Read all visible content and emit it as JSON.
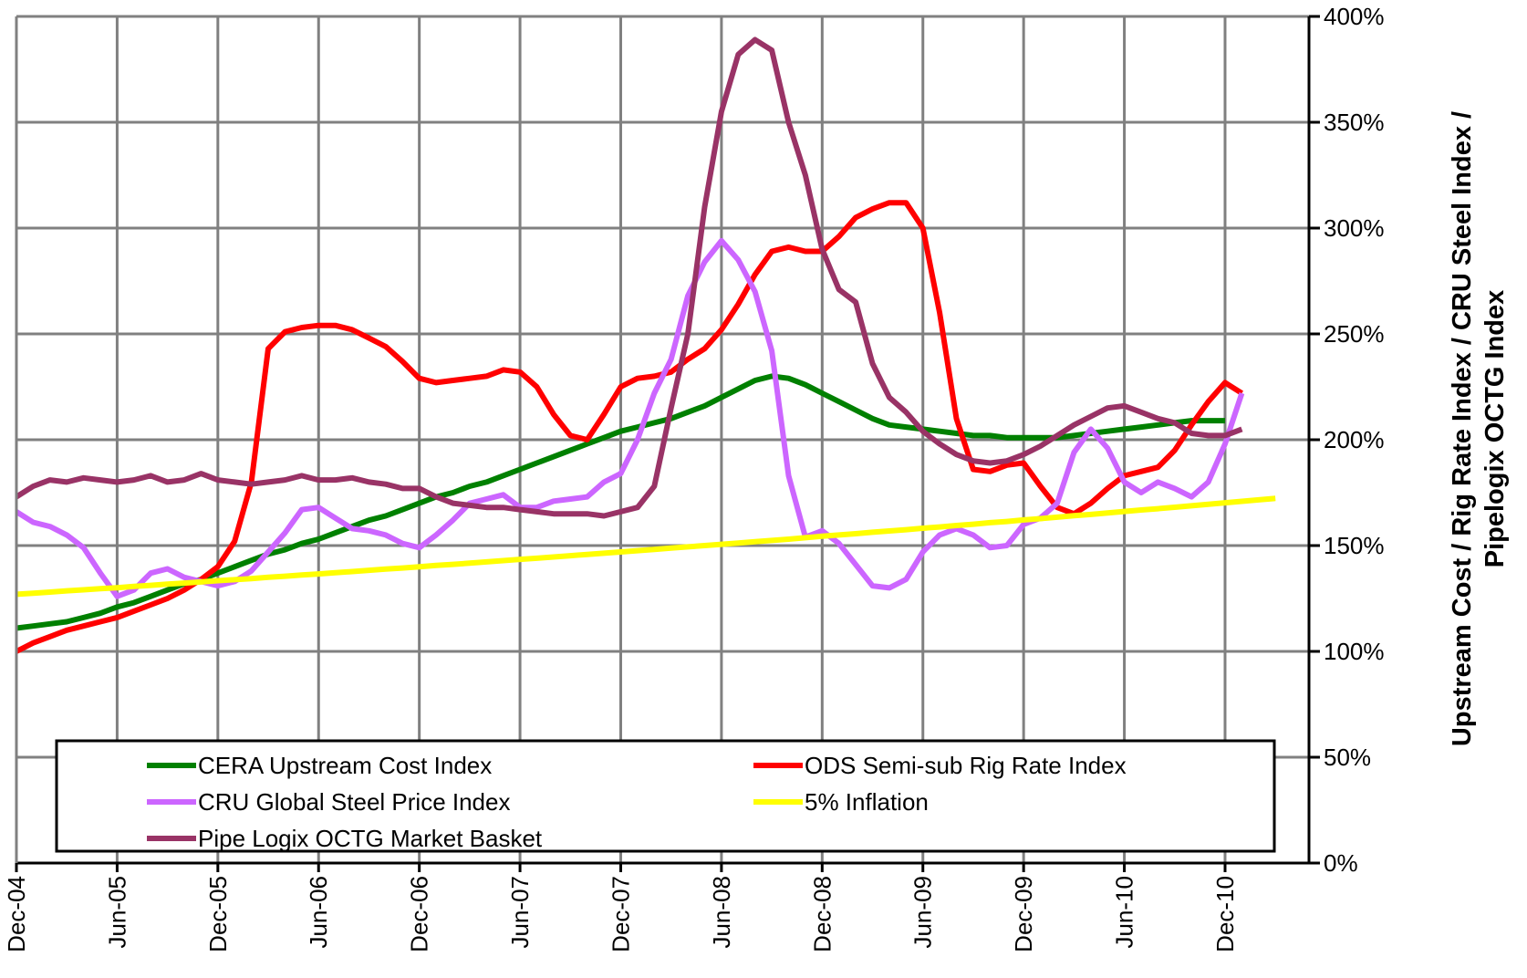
{
  "chart_data": {
    "type": "line",
    "y_label": [
      "Upstream Cost / Rig Rate Index / CRU Steel Index /",
      "Pipelogix OCTG Index"
    ],
    "categories": [
      "Dec-04",
      null,
      null,
      null,
      null,
      null,
      "Jun-05",
      null,
      null,
      null,
      null,
      null,
      "Dec-05",
      null,
      null,
      null,
      null,
      null,
      "Jun-06",
      null,
      null,
      null,
      null,
      null,
      "Dec-06",
      null,
      null,
      null,
      null,
      null,
      "Jun-07",
      null,
      null,
      null,
      null,
      null,
      "Dec-07",
      null,
      null,
      null,
      null,
      null,
      "Jun-08",
      null,
      null,
      null,
      null,
      null,
      "Dec-08",
      null,
      null,
      null,
      null,
      null,
      "Jun-09",
      null,
      null,
      null,
      null,
      null,
      "Dec-09",
      null,
      null,
      null,
      null,
      null,
      "Jun-10",
      null,
      null,
      null,
      null,
      null,
      "Dec-10",
      null,
      null,
      null,
      null,
      null
    ],
    "ylim": [
      0,
      400
    ],
    "yticks": [
      {
        "value": 0,
        "label": "0%"
      },
      {
        "value": 50,
        "label": "50%"
      },
      {
        "value": 100,
        "label": "100%"
      },
      {
        "value": 150,
        "label": "150%"
      },
      {
        "value": 200,
        "label": "200%"
      },
      {
        "value": 250,
        "label": "250%"
      },
      {
        "value": 300,
        "label": "300%"
      },
      {
        "value": 350,
        "label": "350%"
      },
      {
        "value": 400,
        "label": "400%"
      }
    ],
    "grid": true,
    "series": [
      {
        "name": "CERA Upstream Cost Index",
        "color": "#008000",
        "values": [
          111,
          112,
          113,
          114,
          116,
          118,
          121,
          123,
          126,
          129,
          132,
          134,
          137,
          140,
          143,
          146,
          148,
          151,
          153,
          156,
          159,
          162,
          164,
          167,
          170,
          173,
          175,
          178,
          180,
          183,
          186,
          189,
          192,
          195,
          198,
          201,
          204,
          206,
          208,
          210,
          213,
          216,
          220,
          224,
          228,
          230,
          229,
          226,
          222,
          218,
          214,
          210,
          207,
          206,
          205,
          204,
          203,
          202,
          202,
          201,
          201,
          201,
          201,
          202,
          203,
          204,
          205,
          206,
          207,
          208,
          209,
          209,
          209,
          null,
          null,
          null,
          null,
          null
        ]
      },
      {
        "name": "ODS Semi-sub Rig Rate Index",
        "color": "#ff0000",
        "values": [
          100,
          104,
          107,
          110,
          112,
          114,
          116,
          119,
          122,
          125,
          129,
          134,
          140,
          152,
          180,
          243,
          251,
          253,
          254,
          254,
          252,
          248,
          244,
          237,
          229,
          227,
          228,
          229,
          230,
          233,
          232,
          225,
          212,
          202,
          200,
          212,
          225,
          229,
          230,
          232,
          238,
          243,
          252,
          264,
          278,
          289,
          291,
          289,
          289,
          296,
          305,
          309,
          312,
          312,
          300,
          260,
          210,
          186,
          185,
          188,
          189,
          178,
          168,
          165,
          170,
          177,
          183,
          185,
          187,
          195,
          207,
          218,
          227,
          222,
          null,
          null,
          null,
          null
        ]
      },
      {
        "name": "CRU Global Steel Price Index",
        "color": "#cc66ff",
        "values": [
          166,
          161,
          159,
          155,
          149,
          137,
          126,
          129,
          137,
          139,
          135,
          133,
          131,
          133,
          138,
          147,
          156,
          167,
          168,
          163,
          158,
          157,
          155,
          151,
          149,
          155,
          162,
          170,
          172,
          174,
          168,
          168,
          171,
          172,
          173,
          180,
          184,
          200,
          222,
          238,
          268,
          284,
          294,
          285,
          270,
          242,
          183,
          154,
          157,
          151,
          141,
          131,
          130,
          134,
          147,
          155,
          158,
          155,
          149,
          150,
          160,
          163,
          170,
          194,
          205,
          196,
          180,
          175,
          180,
          177,
          173,
          180,
          198,
          222,
          null,
          null,
          null,
          null
        ]
      },
      {
        "name": "5% Inflation",
        "color": "#ffff00",
        "values": [
          127.0,
          127.5,
          128.0,
          128.6,
          129.1,
          129.6,
          130.1,
          130.7,
          131.2,
          131.8,
          132.3,
          132.8,
          133.4,
          133.9,
          134.4,
          135.0,
          135.5,
          136.1,
          136.6,
          137.2,
          137.7,
          138.3,
          138.9,
          139.4,
          140.0,
          140.6,
          141.1,
          141.7,
          142.3,
          142.9,
          143.5,
          144.0,
          144.6,
          145.2,
          145.8,
          146.4,
          147.0,
          147.6,
          148.2,
          148.8,
          149.4,
          150.0,
          150.6,
          151.2,
          151.8,
          152.4,
          153.0,
          153.7,
          154.4,
          155.0,
          155.6,
          156.3,
          156.9,
          157.5,
          158.2,
          158.8,
          159.5,
          160.1,
          160.8,
          161.4,
          162.1,
          162.7,
          163.4,
          164.1,
          164.7,
          165.4,
          166.1,
          166.8,
          167.4,
          168.1,
          168.8,
          169.5,
          170.2,
          170.9,
          171.6,
          172.3,
          null,
          null
        ]
      },
      {
        "name": "Pipe Logix OCTG Market Basket",
        "color": "#993366",
        "values": [
          173,
          178,
          181,
          180,
          182,
          181,
          180,
          181,
          183,
          180,
          181,
          184,
          181,
          180,
          179,
          180,
          181,
          183,
          181,
          181,
          182,
          180,
          179,
          177,
          177,
          173,
          170,
          169,
          168,
          168,
          167,
          166,
          165,
          165,
          165,
          164,
          166,
          168,
          178,
          215,
          250,
          310,
          355,
          382,
          389,
          384,
          350,
          325,
          290,
          271,
          265,
          236,
          220,
          213,
          204,
          198,
          193,
          190,
          189,
          190,
          193,
          197,
          202,
          207,
          211,
          215,
          216,
          213,
          210,
          208,
          203,
          202,
          202,
          205,
          null,
          null,
          null,
          null
        ]
      }
    ]
  }
}
